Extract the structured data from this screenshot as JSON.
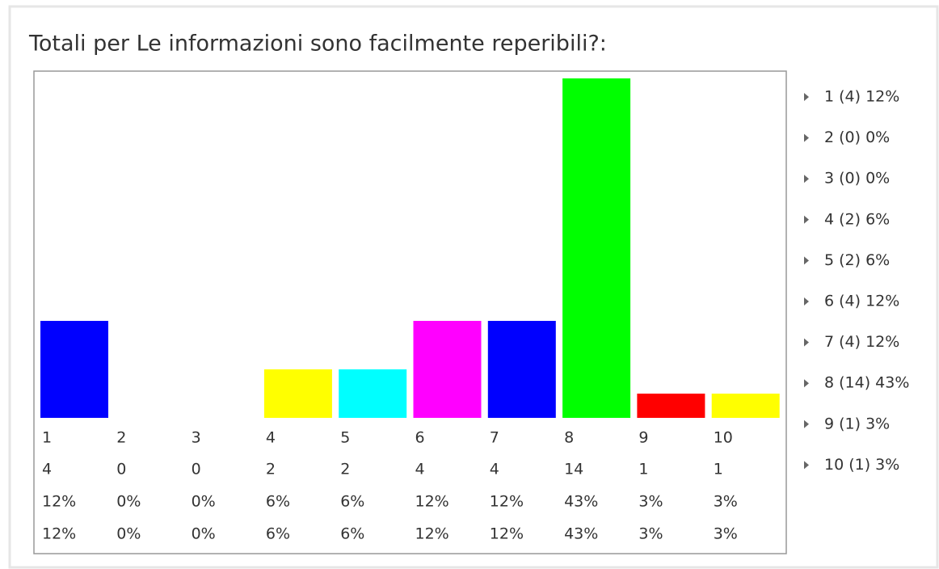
{
  "chart_data": {
    "type": "bar",
    "title": "Totali per Le informazioni sono facilmente reperibili?:",
    "categories": [
      "1",
      "2",
      "3",
      "4",
      "5",
      "6",
      "7",
      "8",
      "9",
      "10"
    ],
    "values": [
      4,
      0,
      0,
      2,
      2,
      4,
      4,
      14,
      1,
      1
    ],
    "percent_rows": [
      [
        "12%",
        "0%",
        "0%",
        "6%",
        "6%",
        "12%",
        "12%",
        "43%",
        "3%",
        "3%"
      ],
      [
        "12%",
        "0%",
        "0%",
        "6%",
        "6%",
        "12%",
        "12%",
        "43%",
        "3%",
        "3%"
      ]
    ],
    "colors": [
      "#0000ff",
      "#00ff00",
      "#ff0000",
      "#ffff00",
      "#00ffff",
      "#ff00ff",
      "#0000ff",
      "#00ff00",
      "#ff0000",
      "#ffff00"
    ],
    "legend": [
      "1 (4) 12%",
      "2 (0) 0%",
      "3 (0) 0%",
      "4 (2) 6%",
      "5 (2) 6%",
      "6 (4) 12%",
      "7 (4) 12%",
      "8 (14) 43%",
      "9 (1) 3%",
      "10 (1) 3%"
    ],
    "ylim": [
      0,
      14
    ]
  }
}
